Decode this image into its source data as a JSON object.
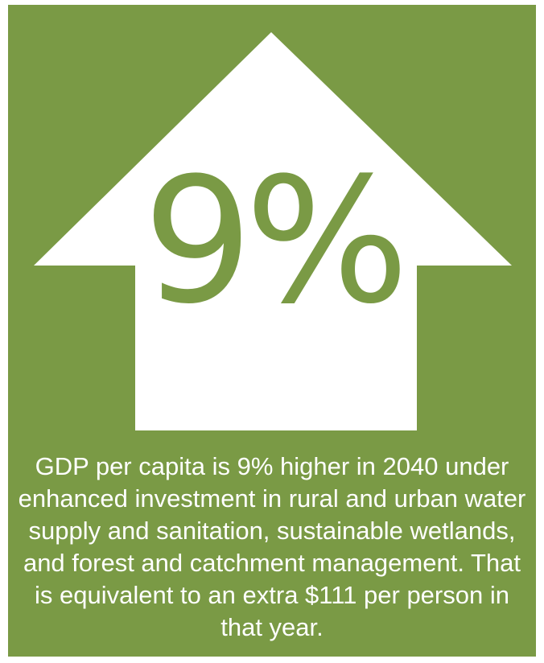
{
  "infographic": {
    "stat": "9%",
    "caption": "GDP per capita is 9% higher in 2040 under enhanced investment in rural and urban water supply and sanitation, sustainable wetlands, and forest and catchment management. That is equivalent to an extra $111 per person in that year.",
    "icon": "up-arrow-icon",
    "colors": {
      "background": "#7a9a45",
      "arrow": "#ffffff",
      "stat_text": "#7a9a45",
      "caption_text": "#ffffff"
    }
  }
}
